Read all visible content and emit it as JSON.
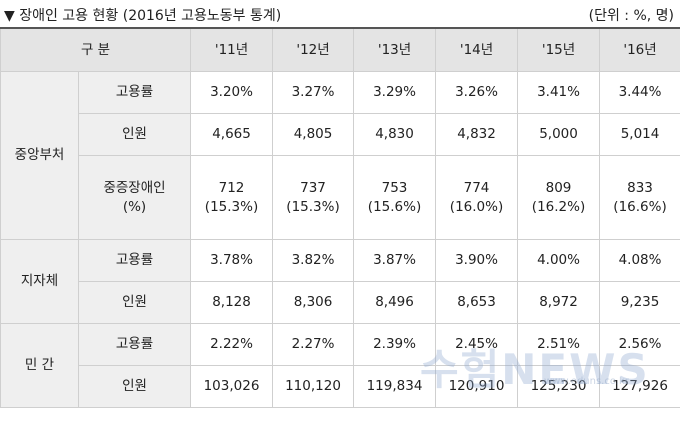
{
  "caption": {
    "title": "▼ 장애인 고용 현황 (2016년 고용노동부 통계)",
    "unit": "(단위 : %, 명)"
  },
  "table": {
    "header": {
      "category": "구 분",
      "years": [
        "'11년",
        "'12년",
        "'13년",
        "'14년",
        "'15년",
        "'16년"
      ]
    },
    "groups": [
      {
        "name": "중앙부처",
        "rows": [
          {
            "item": "고용률",
            "values": [
              "3.20%",
              "3.27%",
              "3.29%",
              "3.26%",
              "3.41%",
              "3.44%"
            ]
          },
          {
            "item": "인원",
            "values": [
              "4,665",
              "4,805",
              "4,830",
              "4,832",
              "5,000",
              "5,014"
            ]
          },
          {
            "item": "중증장애인 (%)",
            "values": [
              "712 (15.3%)",
              "737 (15.3%)",
              "753 (15.6%)",
              "774 (16.0%)",
              "809 (16.2%)",
              "833 (16.6%)"
            ]
          }
        ]
      },
      {
        "name": "지자체",
        "rows": [
          {
            "item": "고용률",
            "values": [
              "3.78%",
              "3.82%",
              "3.87%",
              "3.90%",
              "4.00%",
              "4.08%"
            ]
          },
          {
            "item": "인원",
            "values": [
              "8,128",
              "8,306",
              "8,496",
              "8,653",
              "8,972",
              "9,235"
            ]
          }
        ]
      },
      {
        "name": "민 간",
        "rows": [
          {
            "item": "고용률",
            "values": [
              "2.22%",
              "2.27%",
              "2.39%",
              "2.45%",
              "2.51%",
              "2.56%"
            ]
          },
          {
            "item": "인원",
            "values": [
              "103,026",
              "110,120",
              "119,834",
              "120,910",
              "125,230",
              "127,926"
            ]
          }
        ]
      }
    ]
  },
  "watermark": {
    "text": "수험NEWS",
    "url": "www.eduns.co.kr"
  }
}
